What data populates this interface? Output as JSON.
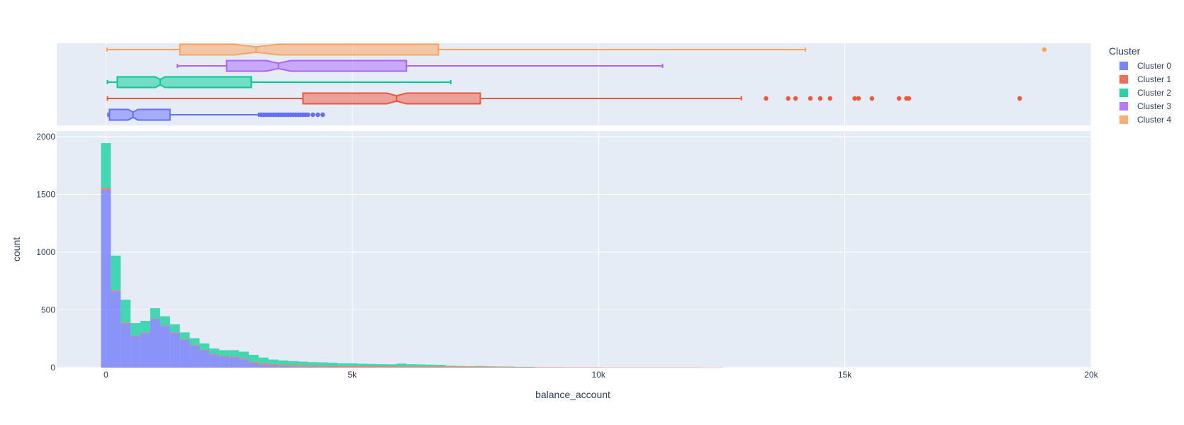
{
  "chart_data": {
    "type": "histogram",
    "xlabel": "balance_account",
    "ylabel": "count",
    "x_range": [
      -1000,
      20000
    ],
    "x_ticks": [
      0,
      5000,
      10000,
      15000,
      20000
    ],
    "x_tick_labels": [
      "0",
      "5k",
      "10k",
      "15k",
      "20k"
    ],
    "y_range": [
      0,
      2000
    ],
    "y_ticks": [
      0,
      500,
      1000,
      1500,
      2000
    ],
    "y_tick_labels": [
      "0",
      "500",
      "1000",
      "1500",
      "2000"
    ],
    "bin_start": -100,
    "bin_width": 200,
    "grid": true,
    "legend": {
      "title": "Cluster",
      "placement": "right"
    },
    "series": [
      {
        "name": "Cluster 0",
        "color": "#636efa",
        "counts": [
          1540,
          660,
          380,
          270,
          300,
          420,
          360,
          300,
          240,
          190,
          150,
          110,
          95,
          90,
          70,
          40,
          25,
          18,
          12,
          10,
          8,
          6,
          4,
          3
        ]
      },
      {
        "name": "Cluster 1",
        "color": "#ef553b",
        "counts": [
          15,
          10,
          8,
          6,
          5,
          5,
          5,
          5,
          5,
          5,
          5,
          6,
          6,
          6,
          8,
          10,
          12,
          12,
          12,
          12,
          12,
          12,
          12,
          12,
          12,
          12,
          12,
          12,
          12,
          12,
          10,
          10,
          10,
          10,
          10,
          10,
          10,
          9,
          8,
          8,
          6,
          6,
          5,
          5,
          4,
          4,
          4,
          3,
          3,
          3,
          3,
          2,
          2,
          2,
          2,
          2,
          2,
          2,
          2,
          2,
          2,
          1,
          1
        ]
      },
      {
        "name": "Cluster 2",
        "color": "#00cc96",
        "counts": [
          390,
          300,
          200,
          110,
          100,
          90,
          80,
          70,
          60,
          60,
          55,
          50,
          50,
          55,
          60,
          60,
          50,
          40,
          38,
          35,
          32,
          30,
          30,
          28,
          25,
          25,
          22,
          20,
          18,
          17,
          25,
          20,
          18,
          16,
          14,
          6,
          4,
          3,
          6,
          4,
          4,
          3,
          2,
          2
        ]
      },
      {
        "name": "Cluster 3",
        "color": "#ab63fa",
        "counts": []
      },
      {
        "name": "Cluster 4",
        "color": "#ffa15a",
        "counts": []
      }
    ],
    "box_plots": [
      {
        "name": "Cluster 0",
        "min": 40,
        "q1": 70,
        "median": 550,
        "q3": 1300,
        "max": 3100,
        "notch": [
          450,
          650
        ],
        "outliers": [
          3150,
          3200,
          3250,
          3300,
          3350,
          3400,
          3450,
          3500,
          3550,
          3600,
          3650,
          3700,
          3750,
          3800,
          3850,
          3900,
          3950,
          4000,
          4050,
          4100,
          4200,
          4300,
          4400
        ]
      },
      {
        "name": "Cluster 1",
        "min": 30,
        "q1": 4000,
        "median": 5900,
        "q3": 7600,
        "max": 12900,
        "notch": [
          5700,
          6100
        ],
        "outliers": [
          13400,
          13850,
          14000,
          14300,
          14500,
          14700,
          15200,
          15280,
          15550,
          16100,
          16250,
          16300,
          18550
        ]
      },
      {
        "name": "Cluster 2",
        "min": 30,
        "q1": 230,
        "median": 1100,
        "q3": 2950,
        "max": 7000,
        "notch": [
          1000,
          1200
        ],
        "outliers": []
      },
      {
        "name": "Cluster 3",
        "min": 1450,
        "q1": 2450,
        "median": 3500,
        "q3": 6100,
        "max": 11300,
        "notch": [
          3250,
          3750
        ],
        "outliers": []
      },
      {
        "name": "Cluster 4",
        "min": 20,
        "q1": 1500,
        "median": 3050,
        "q3": 6750,
        "max": 14200,
        "notch": [
          2600,
          3500
        ],
        "outliers": [
          19050
        ]
      }
    ]
  }
}
